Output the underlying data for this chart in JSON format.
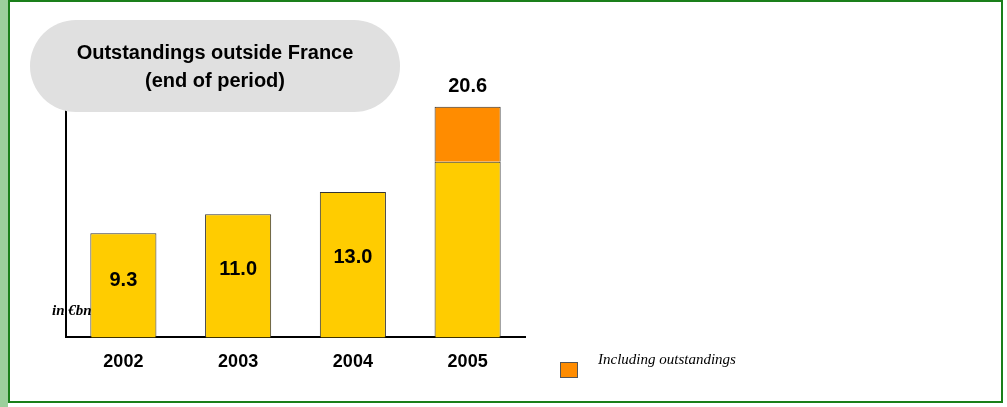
{
  "chart_data": {
    "type": "bar",
    "title": "Outstandings outside France (end of period)",
    "categories": [
      "2002",
      "2003",
      "2004",
      "2005"
    ],
    "stacked": true,
    "series": [
      {
        "color": "#ffcc00",
        "values": [
          9.3,
          11.0,
          13.0,
          15.7
        ],
        "value_labels": [
          "9.3",
          "11.0",
          "13.0",
          null
        ]
      },
      {
        "name": "Including outstandings",
        "color": "#ff8c00",
        "values": [
          null,
          null,
          null,
          4.9
        ]
      }
    ],
    "totals": [
      null,
      null,
      null,
      "20.6"
    ],
    "ylim": [
      0,
      23
    ],
    "tick_labels": "x",
    "grid": false,
    "legend": "bottom right",
    "annotations": [
      "in €bn"
    ]
  }
}
